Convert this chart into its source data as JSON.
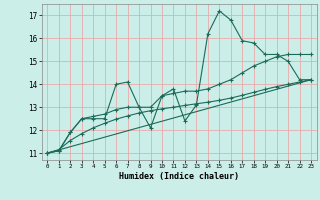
{
  "title": "",
  "xlabel": "Humidex (Indice chaleur)",
  "bg_color": "#cceee8",
  "grid_color": "#e8aaaa",
  "line_color": "#1a6b5a",
  "xlim": [
    -0.5,
    23.5
  ],
  "ylim": [
    10.7,
    17.5
  ],
  "xticks": [
    0,
    1,
    2,
    3,
    4,
    5,
    6,
    7,
    8,
    9,
    10,
    11,
    12,
    13,
    14,
    15,
    16,
    17,
    18,
    19,
    20,
    21,
    22,
    23
  ],
  "yticks": [
    11,
    12,
    13,
    14,
    15,
    16,
    17
  ],
  "series1_x": [
    0,
    1,
    2,
    3,
    4,
    5,
    6,
    7,
    8,
    9,
    10,
    11,
    12,
    13,
    14,
    15,
    16,
    17,
    18,
    19,
    20,
    21,
    22,
    23
  ],
  "series1_y": [
    11.0,
    11.1,
    11.9,
    12.5,
    12.5,
    12.5,
    14.0,
    14.1,
    13.0,
    12.1,
    13.5,
    13.8,
    12.4,
    13.1,
    16.2,
    17.2,
    16.8,
    15.9,
    15.8,
    15.3,
    15.3,
    15.0,
    14.2,
    14.2
  ],
  "series2_x": [
    0,
    1,
    2,
    3,
    4,
    5,
    6,
    7,
    8,
    9,
    10,
    11,
    12,
    13,
    14,
    15,
    16,
    17,
    18,
    19,
    20,
    21,
    22,
    23
  ],
  "series2_y": [
    11.0,
    11.1,
    11.9,
    12.5,
    12.6,
    12.7,
    12.9,
    13.0,
    13.0,
    13.0,
    13.5,
    13.6,
    13.7,
    13.7,
    13.8,
    14.0,
    14.2,
    14.5,
    14.8,
    15.0,
    15.2,
    15.3,
    15.3,
    15.3
  ],
  "series3_x": [
    0,
    23
  ],
  "series3_y": [
    11.0,
    14.2
  ],
  "series4_x": [
    0,
    1,
    2,
    3,
    4,
    5,
    6,
    7,
    8,
    9,
    10,
    11,
    12,
    13,
    14,
    15,
    16,
    17,
    18,
    19,
    20,
    21,
    22,
    23
  ],
  "series4_y": [
    11.0,
    11.15,
    11.55,
    11.85,
    12.1,
    12.3,
    12.48,
    12.62,
    12.75,
    12.85,
    12.93,
    13.0,
    13.08,
    13.15,
    13.22,
    13.3,
    13.4,
    13.52,
    13.65,
    13.78,
    13.9,
    14.0,
    14.1,
    14.2
  ]
}
